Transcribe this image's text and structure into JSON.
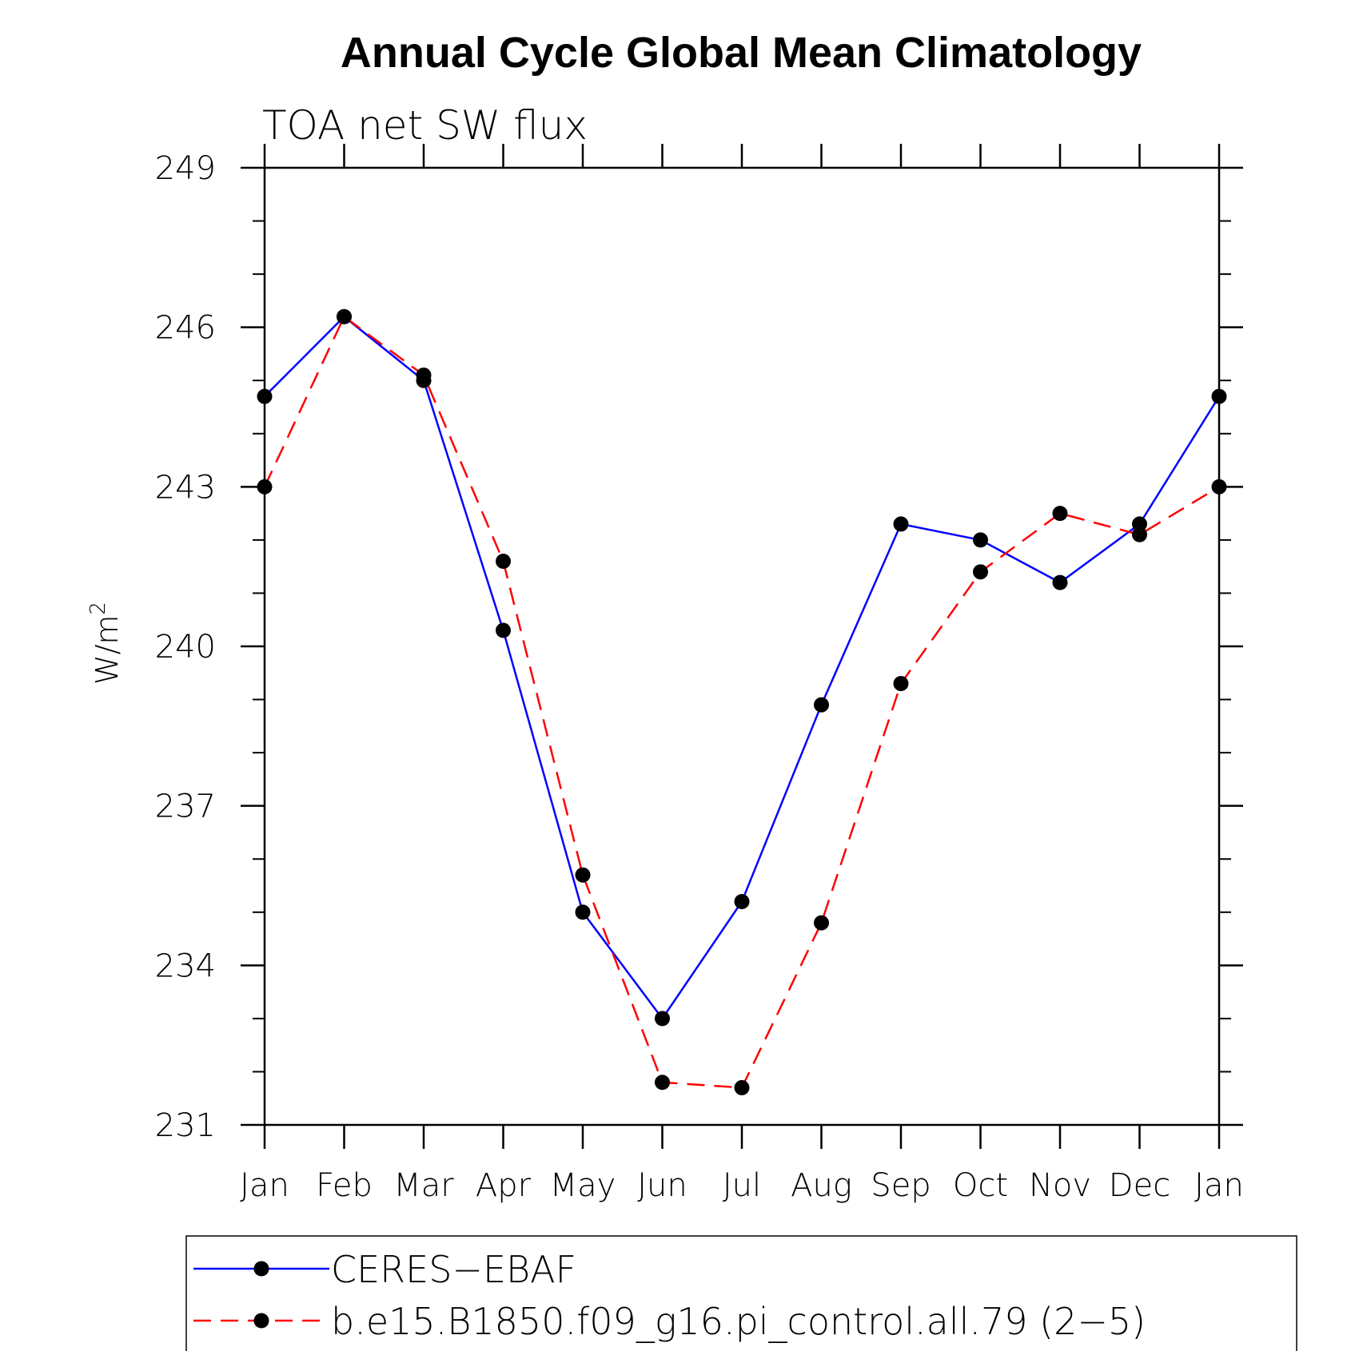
{
  "chart_data": {
    "type": "line",
    "title": "Annual Cycle Global Mean Climatology",
    "subtitle": "TOA net SW flux",
    "xlabel": "",
    "ylabel": "W/m",
    "ylabel_superscript": "2",
    "categories": [
      "Jan",
      "Feb",
      "Mar",
      "Apr",
      "May",
      "Jun",
      "Jul",
      "Aug",
      "Sep",
      "Oct",
      "Nov",
      "Dec",
      "Jan"
    ],
    "ylim": [
      231,
      249
    ],
    "yticks": [
      231,
      234,
      237,
      240,
      243,
      246,
      249
    ],
    "yticks_labels": [
      "231",
      "234",
      "237",
      "240",
      "243",
      "246",
      "249"
    ],
    "y_minor_step": 1,
    "grid": false,
    "legend_position": "bottom",
    "series": [
      {
        "name": "CERES−EBAF",
        "color": "#0000ff",
        "dash": "solid",
        "marker": "filled-circle",
        "values": [
          244.7,
          246.2,
          245.0,
          240.3,
          235.0,
          233.0,
          235.2,
          238.9,
          242.3,
          242.0,
          241.2,
          242.3,
          244.7
        ]
      },
      {
        "name": "b.e15.B1850.f09_g16.pi_control.all.79 (2−5)",
        "color": "#ff0000",
        "dash": "dashed",
        "marker": "filled-circle",
        "values": [
          243.0,
          246.2,
          245.1,
          241.6,
          235.7,
          231.8,
          231.7,
          234.8,
          239.3,
          241.4,
          242.5,
          242.1,
          243.0
        ]
      }
    ]
  }
}
